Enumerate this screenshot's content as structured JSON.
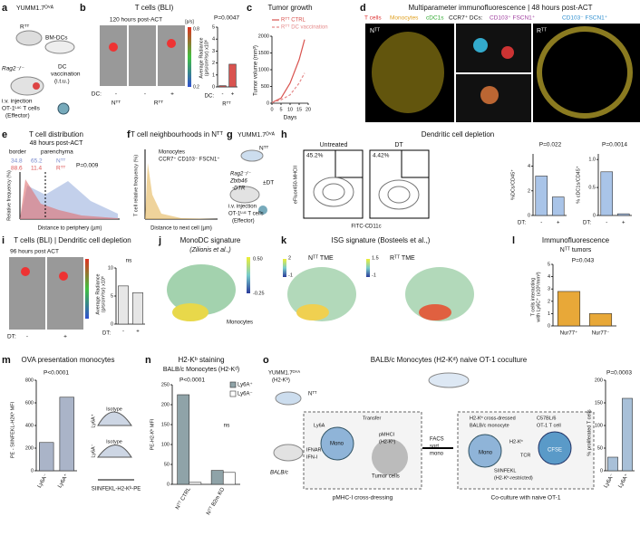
{
  "panels": [
    {
      "letter": "a",
      "texts": [
        "YUMM1.7ᴼⱽᴬ",
        "Rᵀᵀ",
        "BM-DCs",
        "Rag2⁻/⁻",
        "DC",
        "vaccination",
        "(i.t.u.)",
        "i.v. injection",
        "OT-1ᴸᵘᶜ T cells",
        "(Effector)"
      ]
    },
    {
      "letter": "b",
      "texts": [
        "T cells (BLI)",
        "120 hours post-ACT",
        "DC:",
        "-",
        "-",
        "+",
        "Nᵀᵀ",
        "Rᵀᵀ",
        "[p/s]",
        "0.8",
        "0.2",
        "P=0.0047",
        "Average Radiance",
        "(p/s/cm²/sr) x10⁶",
        "DC:",
        "Rᵀᵀ"
      ],
      "charts": [
        {
          "type": "bar",
          "categories": [
            "-",
            "+"
          ],
          "values": [
            0.1,
            1.9
          ],
          "color": "#d9534f",
          "ylim": [
            0,
            5
          ],
          "yticks": [
            0,
            1,
            2,
            3,
            4,
            5
          ]
        }
      ]
    },
    {
      "letter": "c",
      "texts": [
        "Tumor growth",
        "Tumor volume (mm³)",
        "Days"
      ],
      "charts": [
        {
          "type": "line",
          "x": [
            0,
            5,
            10,
            15,
            18
          ],
          "xlim": [
            0,
            20
          ],
          "xticks": [
            0,
            5,
            10,
            15,
            20
          ],
          "ylim": [
            0,
            2000
          ],
          "yticks": [
            0,
            500,
            1000,
            1500,
            2000
          ],
          "series": [
            {
              "name": "Rᵀᵀ CTRL",
              "color": "#d9534f",
              "values": [
                20,
                150,
                600,
                1300,
                1900
              ]
            },
            {
              "name": "Rᵀᵀ DC vaccination",
              "color": "#e58a8a",
              "values": [
                20,
                100,
                250,
                600,
                900
              ]
            }
          ]
        }
      ]
    },
    {
      "letter": "d",
      "texts": [
        "Multiparameter immunofluorescence | 48 hours post-ACT",
        "T cells",
        "Monocytes",
        "cDC1s",
        "CCR7⁺ DCs:",
        "CD103⁺ FSCN1⁺",
        "CD103⁻ FSCN1⁺",
        "Nᵀᵀ",
        "Rᵀᵀ"
      ]
    },
    {
      "letter": "e",
      "texts": [
        "T cell distribution",
        "48 hours post-ACT",
        "border",
        "parenchyma",
        "34.8",
        "65.2",
        "88.6",
        "11.4",
        "Nᵀᵀ",
        "Rᵀᵀ",
        "P=0.009",
        "Relative frequency (%)",
        "Distance to periphery (µm)"
      ]
    },
    {
      "letter": "f",
      "texts": [
        "T cell neighbourhoods in Nᵀᵀ",
        "Monocytes",
        "CCR7⁺ CD103⁻ FSCN1⁺",
        "T cell relative frequency (%)",
        "Distance to next cell (µm)"
      ]
    },
    {
      "letter": "g",
      "texts": [
        "YUMM1.7ᴼⱽᴬ",
        "Nᵀᵀ",
        "Rag2⁻/⁻",
        "Zbtb46",
        "-DTR",
        "±DT",
        "i.v. injection",
        "OT-1ᴸᵘᶜ T cells",
        "(Effector)"
      ]
    },
    {
      "letter": "h",
      "texts": [
        "Dendritic cell depletion",
        "Untreated",
        "DT",
        "45.2%",
        "4.42%",
        "eFluor450-MHCII",
        "FITC-CD11c",
        "P=0.022",
        "P=0.0014",
        "%DCs/CD45⁺",
        "% cDC1s/CD45⁺",
        "DT:",
        "DT:"
      ],
      "charts": [
        {
          "type": "bar",
          "categories": [
            "-",
            "+"
          ],
          "values": [
            3.2,
            1.5
          ],
          "color": "#a9c4e8",
          "ylim": [
            0,
            5
          ],
          "yticks": [
            0,
            2,
            4
          ]
        },
        {
          "type": "bar",
          "categories": [
            "-",
            "+"
          ],
          "values": [
            0.78,
            0.03
          ],
          "color": "#a9c4e8",
          "ylim": [
            0,
            1.1
          ],
          "yticks": [
            0,
            0.5,
            {
              "value": 1,
              "label": "1.0"
            }
          ]
        }
      ]
    },
    {
      "letter": "i",
      "texts": [
        "T cells (BLI) | Dendritic cell depletion",
        "96 hours post ACT",
        "DT:",
        "-",
        "+",
        "ns",
        "Average Radiance",
        "(p/s/cm²/sr) x10⁶",
        "DT:"
      ],
      "charts": [
        {
          "type": "bar",
          "categories": [
            "-",
            "+"
          ],
          "values": [
            6.8,
            5.6
          ],
          "color": "#e6e6e6",
          "ylim": [
            0,
            10
          ],
          "yticks": [
            0,
            5,
            10
          ]
        }
      ]
    },
    {
      "letter": "j",
      "texts": [
        "MonoDC signature",
        "(Zilionis et al.,)",
        "0.50",
        "-0.25",
        "Monocytes"
      ]
    },
    {
      "letter": "k",
      "texts": [
        "ISG signature (Bosteels et al.,)",
        "2",
        "-1",
        "Nᵀᵀ TME",
        "1.5",
        "-1",
        "Rᵀᵀ TME"
      ]
    },
    {
      "letter": "l",
      "texts": [
        "Immunofluorescence",
        "Nᵀᵀ tumors",
        "P=0.043",
        "T cells interacting",
        "with Ly6C⁺ (x10²/mm²)"
      ],
      "charts": [
        {
          "type": "bar",
          "categories": [
            "Nur77⁺",
            "Nur77⁻"
          ],
          "values": [
            2.8,
            1.0
          ],
          "color": "#e8a838",
          "ylim": [
            0,
            5
          ],
          "yticks": [
            0,
            1,
            2,
            3,
            4,
            5
          ]
        }
      ]
    },
    {
      "letter": "m",
      "texts": [
        "OVA presentation monocytes",
        "P<0.0001",
        "PE - SIINFEKL-H2Kᵇ MFI",
        "Isotype",
        "Isotype",
        "Ly6A⁺",
        "Ly6A⁻",
        "SIINFEKL-H2-Kᵇ-PE"
      ],
      "charts": [
        {
          "type": "bar",
          "categories": [
            "Ly6A⁻",
            "Ly6A⁺"
          ],
          "values": [
            250,
            650
          ],
          "color": "#aab4c8",
          "ylim": [
            0,
            800
          ],
          "yticks": [
            0,
            200,
            400,
            600,
            800
          ]
        }
      ]
    },
    {
      "letter": "n",
      "texts": [
        "H2-Kᵇ staining",
        "BALB/c Monocytes (H2-Kᵈ)",
        "P<0.0001",
        "ns",
        "PE-H2-Kᵇ MFI"
      ],
      "charts": [
        {
          "type": "bar",
          "categories": [
            "Nᵀᵀ CTRL",
            "Nᵀᵀ B2m KO"
          ],
          "ylim": [
            0,
            250
          ],
          "yticks": [
            0,
            50,
            100,
            150,
            200,
            250
          ],
          "series": [
            {
              "name": "Ly6A⁺",
              "color": "#8fa3a8",
              "values": [
                225,
                35
              ]
            },
            {
              "name": "Ly6A⁻",
              "color": "#ffffff",
              "values": [
                5,
                30
              ]
            }
          ]
        }
      ]
    },
    {
      "letter": "o",
      "texts": [
        "BALB/c Monocytes (H2-Kᵈ) naive OT-1 coculture",
        "YUMM1.7ᴼⱽᴬ",
        "(H2-Kᵇ)",
        "Nᵀᵀ",
        "BALB/c",
        "Mono",
        "Ly6A",
        "IFNAR",
        "IFN-I",
        "Transfer",
        "pMHCI",
        "(H2-Kᵇ)",
        "Tumor cells",
        "pMHC-I cross-dressing",
        "FACS",
        "sort",
        "mono",
        "H2-Kᵇ cross-dressed",
        "BALB/c monocyte",
        "C57BL/6",
        "OT-1 T cell",
        "H2-Kᵇ",
        "TCR",
        "CFSE",
        "Mono",
        "SIINFEKL",
        "(H2-Kᵇ-restricted)",
        "Co-culture with naive OT-1",
        "P=0.0003",
        "% proliferated T cells"
      ],
      "charts": [
        {
          "type": "bar",
          "categories": [
            "Ly6A⁻",
            "Ly6A⁺"
          ],
          "values": [
            30,
            160
          ],
          "color": "#a8c0d8",
          "ylim": [
            0,
            200
          ],
          "yticks": [
            0,
            50,
            100,
            150,
            200
          ]
        }
      ]
    }
  ]
}
